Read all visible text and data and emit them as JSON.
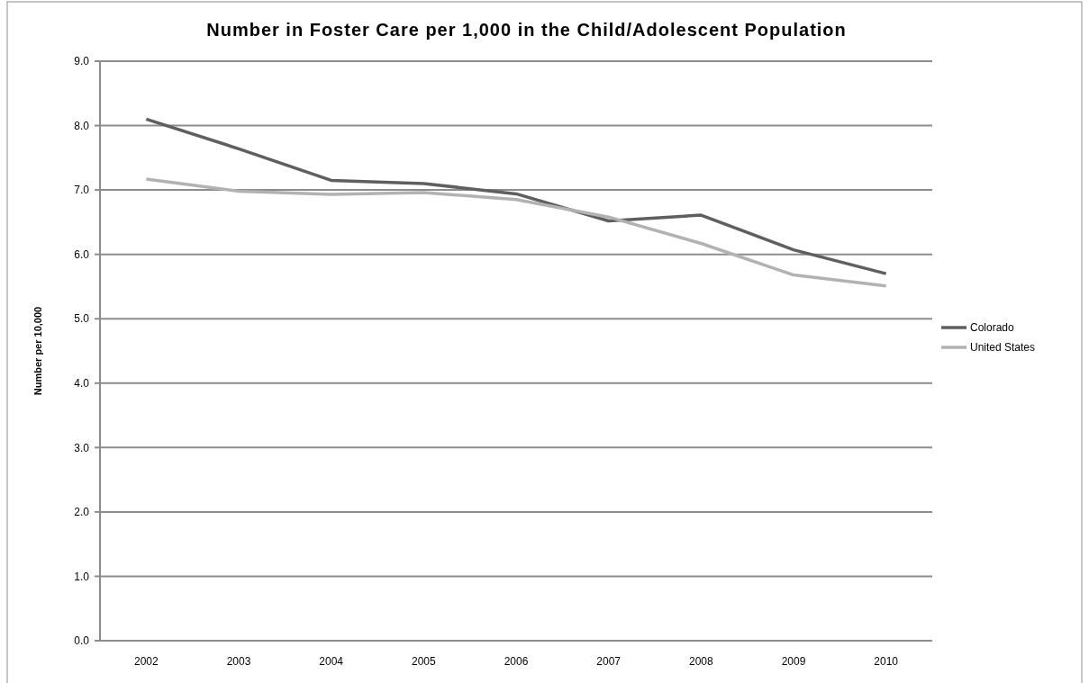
{
  "chart_data": {
    "type": "line",
    "title": "Number in Foster Care per 1,000 in the Child/Adolescent Population",
    "ylabel": "Number per 10,000",
    "categories": [
      "2002",
      "2003",
      "2004",
      "2005",
      "2006",
      "2007",
      "2008",
      "2009",
      "2010"
    ],
    "series": [
      {
        "name": "Colorado",
        "color": "#5f5f5f",
        "values": [
          8.1,
          7.64,
          7.15,
          7.1,
          6.94,
          6.52,
          6.61,
          6.07,
          5.7
        ]
      },
      {
        "name": "United States",
        "color": "#b2b2b2",
        "values": [
          7.17,
          6.98,
          6.93,
          6.96,
          6.85,
          6.58,
          6.17,
          5.68,
          5.51
        ]
      }
    ],
    "ylim": [
      0,
      9
    ],
    "yticks": [
      {
        "value": 0,
        "label": "0.0"
      },
      {
        "value": 1,
        "label": "1.0"
      },
      {
        "value": 2,
        "label": "2.0"
      },
      {
        "value": 3,
        "label": "3.0"
      },
      {
        "value": 4,
        "label": "4.0"
      },
      {
        "value": 5,
        "label": "5.0"
      },
      {
        "value": 6,
        "label": "6.0"
      },
      {
        "value": 7,
        "label": "7.0"
      },
      {
        "value": 8,
        "label": "8.0"
      },
      {
        "value": 9,
        "label": "9.0"
      }
    ],
    "grid": "y",
    "legend": "right",
    "marker": "none",
    "line_style": "solid"
  }
}
